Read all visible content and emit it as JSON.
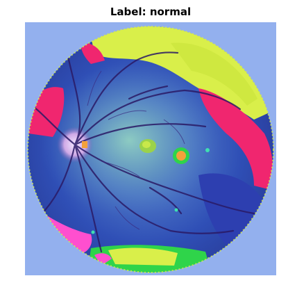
{
  "figure": {
    "title": "Label: normal"
  },
  "image": {
    "background_color": "#93b0ee",
    "fundus_base_color": "#3a64c8",
    "palette": {
      "yellow": "#d9ef4a",
      "magenta": "#f0266f",
      "pink": "#ff4fcf",
      "green": "#2fd44a",
      "cyan": "#3fe0b0",
      "navy": "#1b2d8a",
      "vessel": "#2b1a66",
      "lesion_orange": "#f3a13b"
    }
  }
}
